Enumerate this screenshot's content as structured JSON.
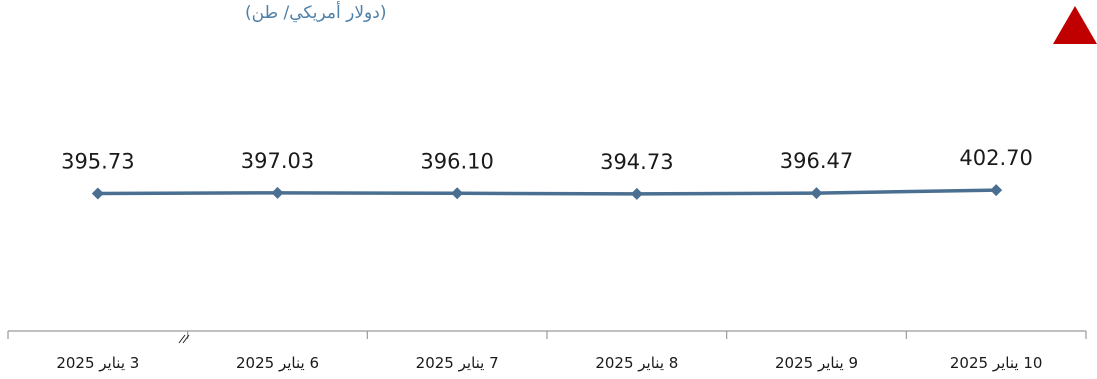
{
  "unit_label": "(دولار أمريكي/ طن)",
  "colors": {
    "line": "#4a6f91",
    "marker": "#4a6f91",
    "axis": "#9a9a9a",
    "unit_text": "#4f81a8",
    "triangle": "#c00000"
  },
  "icons": {
    "corner": "red-triangle-up-icon",
    "axis_break": "axis-break-icon"
  },
  "chart_data": {
    "type": "line",
    "categories": [
      "3 يناير 2025",
      "6 يناير 2025",
      "7 يناير 2025",
      "8 يناير 2025",
      "9 يناير 2025",
      "10 يناير 2025"
    ],
    "values": [
      395.73,
      397.03,
      396.1,
      394.73,
      396.47,
      402.7
    ],
    "data_labels": [
      "395.73",
      "397.03",
      "396.10",
      "394.73",
      "396.47",
      "402.70"
    ],
    "title": "",
    "xlabel": "",
    "ylabel": "",
    "ylim": [
      0,
      800
    ],
    "grid": false,
    "legend": "none",
    "axis_break_after": "3 يناير 2025"
  }
}
